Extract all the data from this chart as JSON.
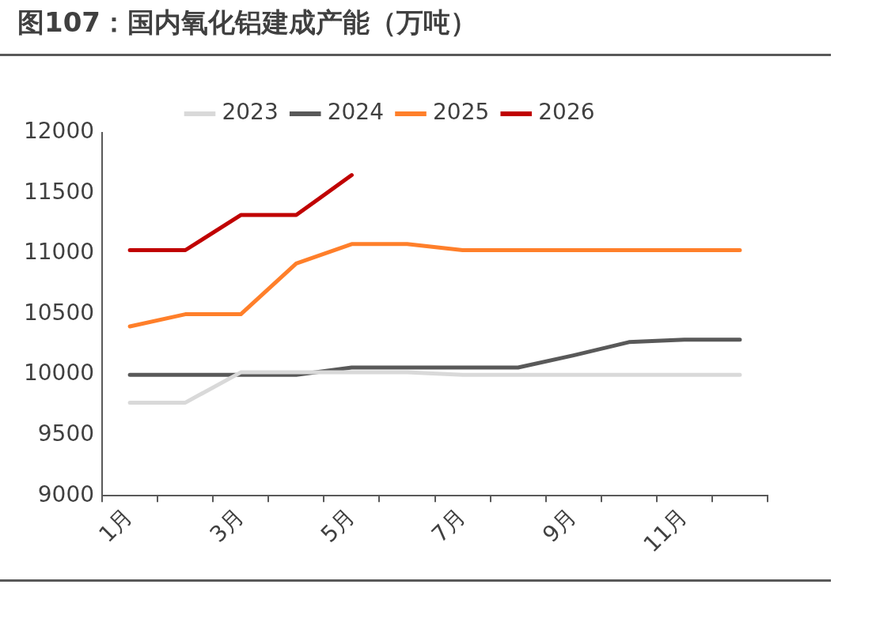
{
  "chart_data": {
    "type": "line",
    "title": "图107：国内氧化铝建成产能（万吨）",
    "categories": [
      "1月",
      null,
      "3月",
      null,
      "5月",
      null,
      "7月",
      null,
      "9月",
      null,
      "11月",
      null
    ],
    "series": [
      {
        "name": "2023",
        "color": "#d9d9d9",
        "values": [
          9770,
          9770,
          10020,
          10020,
          10020,
          10020,
          10000,
          10000,
          10000,
          10000,
          10000,
          10000
        ]
      },
      {
        "name": "2024",
        "color": "#595959",
        "values": [
          10000,
          10000,
          10000,
          10000,
          10060,
          10060,
          10060,
          10060,
          10160,
          10270,
          10290,
          10290
        ]
      },
      {
        "name": "2025",
        "color": "#ff7f2a",
        "values": [
          10400,
          10500,
          10500,
          10920,
          11080,
          11080,
          11030,
          11030,
          11030,
          11030,
          11030,
          11030
        ]
      },
      {
        "name": "2026",
        "color": "#c00000",
        "values": [
          11030,
          11030,
          11320,
          11320,
          11650,
          null,
          null,
          null,
          null,
          null,
          null,
          null
        ]
      }
    ],
    "ylim": [
      9000,
      12000
    ],
    "yticks": [
      9000,
      9500,
      10000,
      10500,
      11000,
      11500,
      12000
    ],
    "grid": false,
    "legend": "top",
    "marker": "none",
    "line_style": "solid"
  }
}
